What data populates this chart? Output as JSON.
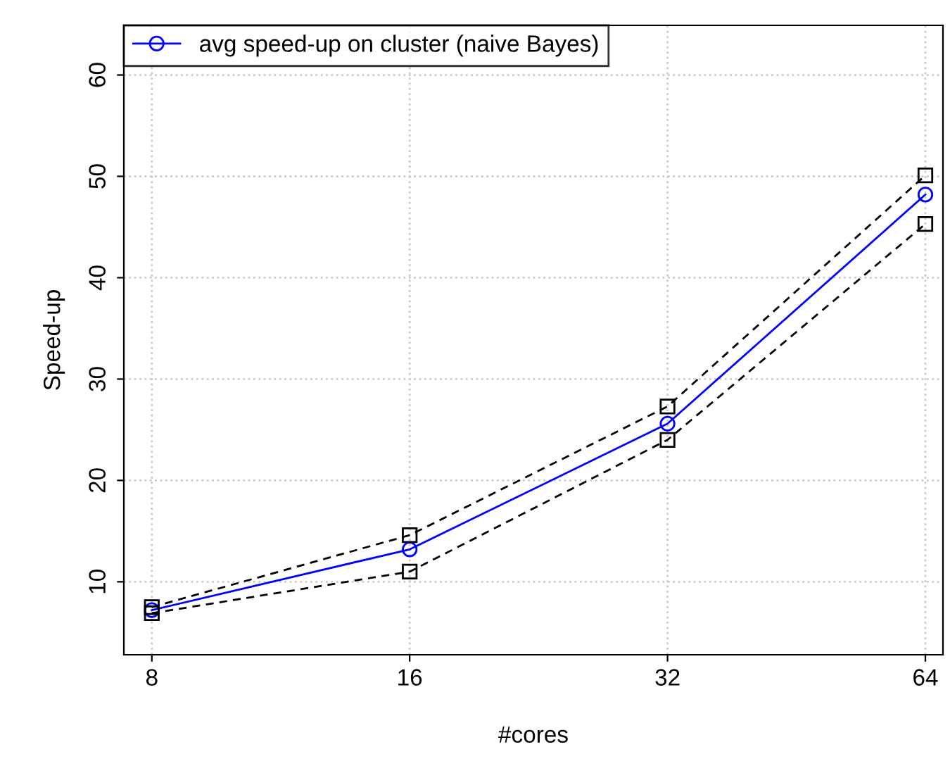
{
  "chart_data": {
    "type": "line",
    "xlabel": "#cores",
    "ylabel": "Speed-up",
    "x": [
      8,
      16,
      32,
      64
    ],
    "log": "x",
    "xlim": [
      7.42,
      67.1
    ],
    "xticks": [
      8,
      16,
      32,
      64
    ],
    "ylim": [
      2.8,
      64.9
    ],
    "yticks": [
      10,
      20,
      30,
      40,
      50,
      60
    ],
    "grid": true,
    "legend": "top left",
    "series": [
      {
        "name": "avg speed-up on cluster (naive Bayes)",
        "color": "#0000ff",
        "values": [
          7.2,
          13.2,
          25.6,
          48.2
        ],
        "marker": "circle",
        "line_style": "solid"
      },
      {
        "color": "#000000",
        "values": [
          7.5,
          14.6,
          27.3,
          50.1
        ],
        "marker": "square",
        "line_style": "dashed"
      },
      {
        "color": "#000000",
        "values": [
          6.9,
          11.0,
          24.0,
          45.3
        ],
        "marker": "square",
        "line_style": "dashed"
      }
    ]
  }
}
